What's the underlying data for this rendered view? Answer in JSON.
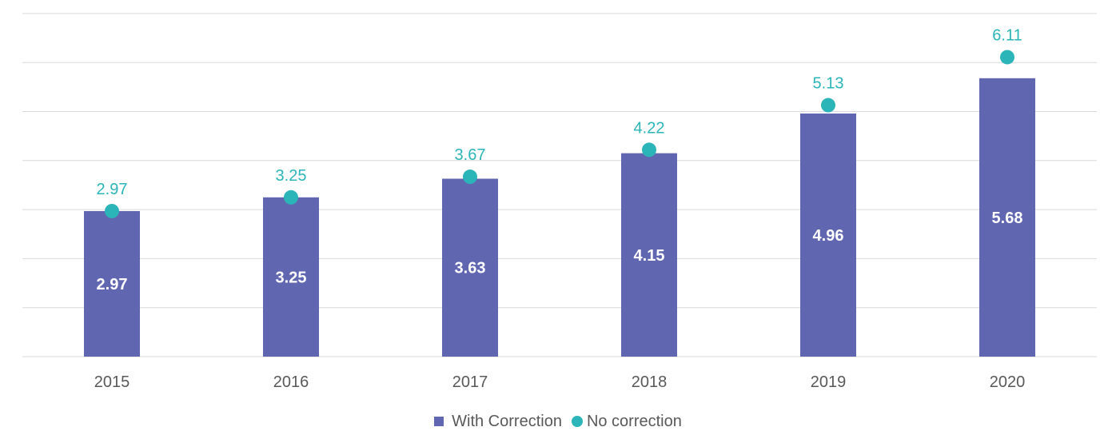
{
  "chart_data": {
    "type": "bar",
    "categories": [
      "2015",
      "2016",
      "2017",
      "2018",
      "2019",
      "2020"
    ],
    "series": [
      {
        "name": "With Correction",
        "kind": "bar",
        "color": "#6166b0",
        "values": [
          2.97,
          3.25,
          3.63,
          4.15,
          4.96,
          5.68
        ],
        "labels": [
          "2.97",
          "3.25",
          "3.63",
          "4.15",
          "4.96",
          "5.68"
        ]
      },
      {
        "name": "No correction",
        "kind": "scatter",
        "color": "#2bb5b8",
        "values": [
          2.97,
          3.25,
          3.67,
          4.22,
          5.13,
          6.11
        ],
        "labels": [
          "2.97",
          "3.25",
          "3.67",
          "4.22",
          "5.13",
          "6.11"
        ]
      }
    ],
    "ylim": [
      0,
      7
    ],
    "grid": true,
    "legend_position": "bottom",
    "title": "",
    "xlabel": "",
    "ylabel": ""
  }
}
